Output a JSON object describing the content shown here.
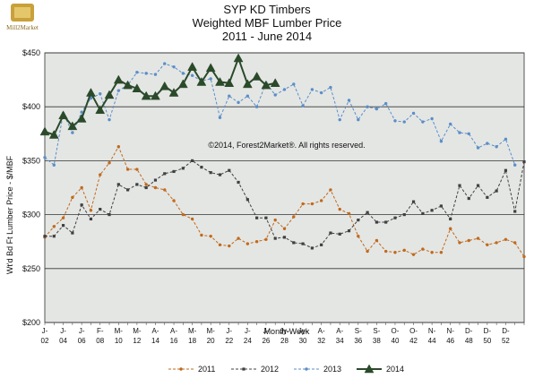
{
  "logo": {
    "text": "Mill2Market"
  },
  "chart_data": {
    "type": "line",
    "title": "SYP KD Timbers",
    "subtitle": "Weighted MBF Lumber Price",
    "subtitle2": "2011 - June 2014",
    "xlabel": "Month-Week",
    "ylabel": "Wt'd Bd Ft Lumber Price - $/MBF",
    "annotation": "©2014, Forest2Market®. All rights reserved.",
    "ylim": [
      200,
      450
    ],
    "yticks": [
      200,
      250,
      300,
      350,
      400,
      450
    ],
    "ytick_labels": [
      "$200",
      "$250",
      "$300",
      "$350",
      "$400",
      "$450"
    ],
    "grid": true,
    "legend_position": "bottom",
    "background_color": "#e4e6e4",
    "x_count": 53,
    "xtick_labels": [
      {
        "i": 0,
        "top": "J-",
        "bottom": "02"
      },
      {
        "i": 2,
        "top": "J-",
        "bottom": "04"
      },
      {
        "i": 4,
        "top": "J-",
        "bottom": "06"
      },
      {
        "i": 6,
        "top": "F-",
        "bottom": "08"
      },
      {
        "i": 8,
        "top": "M-",
        "bottom": "10"
      },
      {
        "i": 10,
        "top": "M-",
        "bottom": "12"
      },
      {
        "i": 12,
        "top": "A-",
        "bottom": "14"
      },
      {
        "i": 14,
        "top": "A-",
        "bottom": "16"
      },
      {
        "i": 16,
        "top": "M-",
        "bottom": "18"
      },
      {
        "i": 18,
        "top": "M-",
        "bottom": "20"
      },
      {
        "i": 20,
        "top": "J-",
        "bottom": "22"
      },
      {
        "i": 22,
        "top": "J-",
        "bottom": "24"
      },
      {
        "i": 24,
        "top": "J-",
        "bottom": "26"
      },
      {
        "i": 26,
        "top": "Jy-",
        "bottom": "28"
      },
      {
        "i": 28,
        "top": "Jy-",
        "bottom": "30"
      },
      {
        "i": 30,
        "top": "A-",
        "bottom": "32"
      },
      {
        "i": 32,
        "top": "A-",
        "bottom": "34"
      },
      {
        "i": 34,
        "top": "S-",
        "bottom": "36"
      },
      {
        "i": 36,
        "top": "S-",
        "bottom": "38"
      },
      {
        "i": 38,
        "top": "O-",
        "bottom": "40"
      },
      {
        "i": 40,
        "top": "O-",
        "bottom": "42"
      },
      {
        "i": 42,
        "top": "N-",
        "bottom": "44"
      },
      {
        "i": 44,
        "top": "N-",
        "bottom": "46"
      },
      {
        "i": 46,
        "top": "D-",
        "bottom": "48"
      },
      {
        "i": 48,
        "top": "D-",
        "bottom": "50"
      },
      {
        "i": 50,
        "top": "D-",
        "bottom": "52"
      }
    ],
    "series": [
      {
        "name": "2011",
        "color": "#c06a1c",
        "style": "dashed",
        "marker": "dot",
        "values": [
          279,
          289,
          297,
          316,
          325,
          304,
          337,
          348,
          363,
          342,
          342,
          328,
          325,
          323,
          313,
          300,
          296,
          281,
          280,
          272,
          271,
          278,
          273,
          275,
          277,
          295,
          287,
          298,
          310,
          310,
          313,
          323,
          305,
          301,
          280,
          266,
          276,
          266,
          265,
          267,
          263,
          268,
          265,
          265,
          287,
          274,
          276,
          278,
          272,
          274,
          277,
          274,
          261
        ]
      },
      {
        "name": "2012",
        "color": "#404040",
        "style": "dashed",
        "marker": "square",
        "values": [
          280,
          280,
          290,
          283,
          309,
          296,
          305,
          300,
          328,
          323,
          328,
          325,
          332,
          338,
          340,
          343,
          350,
          344,
          339,
          337,
          341,
          330,
          314,
          297,
          297,
          278,
          279,
          274,
          273,
          269,
          272,
          283,
          282,
          285,
          295,
          302,
          293,
          293,
          297,
          300,
          312,
          301,
          304,
          308,
          296,
          327,
          315,
          327,
          316,
          322,
          341,
          303,
          349
        ]
      },
      {
        "name": "2013",
        "color": "#5b8ec8",
        "style": "dashed",
        "marker": "dot",
        "values": [
          353,
          346,
          394,
          376,
          395,
          408,
          412,
          388,
          415,
          420,
          432,
          431,
          430,
          440,
          437,
          431,
          429,
          424,
          426,
          390,
          410,
          404,
          410,
          400,
          422,
          411,
          416,
          421,
          401,
          416,
          413,
          418,
          388,
          406,
          388,
          400,
          398,
          403,
          387,
          386,
          394,
          386,
          389,
          368,
          384,
          376,
          375,
          362,
          366,
          363,
          370,
          346,
          null
        ]
      },
      {
        "name": "2014",
        "color": "#2a4a2a",
        "style": "solid",
        "marker": "triangle",
        "values": [
          377,
          374,
          392,
          382,
          389,
          413,
          397,
          411,
          425,
          420,
          417,
          410,
          410,
          419,
          413,
          421,
          437,
          423,
          436,
          423,
          422,
          445,
          421,
          428,
          420,
          422
        ]
      }
    ]
  }
}
